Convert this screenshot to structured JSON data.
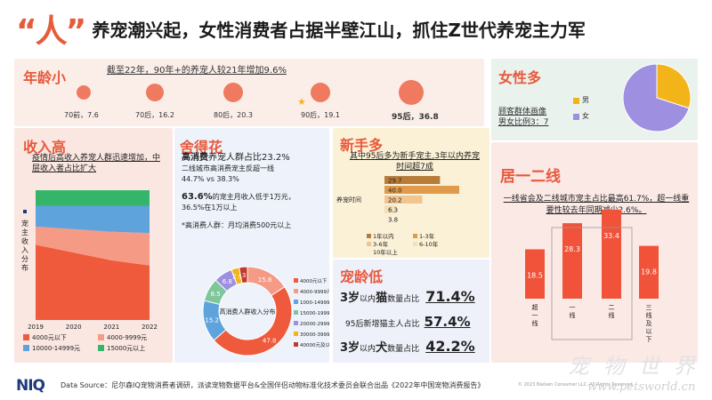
{
  "headline": {
    "quote": "“人”",
    "text": "养宠潮兴起，女性消费者占据半壁江山，抓住Z世代养宠主力军"
  },
  "age": {
    "title": "年龄小",
    "subtitle": "截至22年，90年+的养宠人较21年增加9.6%",
    "groups": [
      {
        "label": "70前，7.6",
        "value": 7.6
      },
      {
        "label": "70后，16.2",
        "value": 16.2
      },
      {
        "label": "80后，20.3",
        "value": 20.3
      },
      {
        "label": "90后，19.1",
        "value": 19.1
      },
      {
        "label": "95后，36.8",
        "value": 36.8
      }
    ]
  },
  "female": {
    "title": "女性多",
    "note_line1": "顾客群体画像",
    "note_line2": "男女比例3：7",
    "legend": [
      {
        "label": "男",
        "color": "#f2b418"
      },
      {
        "label": "女",
        "color": "#9e8fe0"
      }
    ]
  },
  "income": {
    "title": "收入高",
    "note": "疫情后高收入养宠人群迅速增加，中层收入者占比扩大",
    "ylabel": "宠主收入分布",
    "legend": [
      {
        "label": "4000元以下",
        "color": "#ef5a3c"
      },
      {
        "label": "4000-9999元",
        "color": "#f59a85"
      },
      {
        "label": "10000-14999元",
        "color": "#5fa3dc"
      },
      {
        "label": "15000元以上",
        "color": "#35b56a"
      }
    ]
  },
  "spend": {
    "title": "舍得花",
    "line1_bold": "高消费",
    "line1_rest": "养宠人群占比23.2%",
    "line2": "二线城市高消费宠主反超一线",
    "line3": "44.7% vs 38.3%",
    "line4_bold": "63.6%",
    "line4_rest": "的宠主月收入低于1万元，",
    "line5": "36.5%在1万以上",
    "line6": "*高消费人群：月均消费500元以上",
    "donut_center": "高消费人群收入分布",
    "legend": [
      {
        "label": "4000元以下",
        "color": "#ef5a3c"
      },
      {
        "label": "4000-9999元",
        "color": "#f59a85"
      },
      {
        "label": "1000-14999元",
        "color": "#5fa3dc"
      },
      {
        "label": "15000-19999元",
        "color": "#7fc79a"
      },
      {
        "label": "20000-29999元",
        "color": "#9e8fe0"
      },
      {
        "label": "30000-39999元",
        "color": "#f2b418"
      },
      {
        "label": "40000元及以上",
        "color": "#c0392b"
      }
    ]
  },
  "novice": {
    "title": "新手多",
    "note": "其中95后多为新手宠主,3年以内养宠时间超7成",
    "axis_label": "养宠时间",
    "legend": [
      {
        "label": "1年以内",
        "color": "#b87c3a"
      },
      {
        "label": "1-3年",
        "color": "#e09a4c"
      },
      {
        "label": "3-6年",
        "color": "#f0c590"
      },
      {
        "label": "6-10年",
        "color": "#f5dfb9"
      },
      {
        "label": "10年以上",
        "color": "#fbeed7"
      }
    ]
  },
  "petage": {
    "title": "宠龄低",
    "row1_pre": "3岁",
    "row1_mid": "以内",
    "row1_key": "猫",
    "row1_post": "数量占比",
    "row1_value": "71.4%",
    "row2_pre": "95后新增猫主人占比",
    "row2_value": "57.4%",
    "row3_pre": "3岁",
    "row3_mid": "以内",
    "row3_key": "犬",
    "row3_post": "数量占比",
    "row3_value": "42.2%"
  },
  "city": {
    "title": "居一二线",
    "note": "一线省会及二线城市宠主占比最高61.7%，超一线重要性较去年同期减少2.6%。"
  },
  "footer": {
    "brand": "NIQ",
    "source": "Data Source：尼尔森IQ宠物消费者调研，派读宠物数据平台&全国伴侣动物标准化技术委员会联合出品《2022年中国宠物消费报告》",
    "copyright": "© 2023  Nielsen Consumer LLC. All Rights Reserved.",
    "watermark_cn": "宠 物 世 界",
    "watermark_url": "www.petsworld.cn"
  },
  "chart_data": [
    {
      "type": "bubble",
      "title": "年龄小",
      "categories": [
        "70前",
        "70后",
        "80后",
        "90后",
        "95后"
      ],
      "values": [
        7.6,
        16.2,
        20.3,
        19.1,
        36.8
      ]
    },
    {
      "type": "pie",
      "title": "女性多",
      "categories": [
        "男",
        "女"
      ],
      "values": [
        30,
        70
      ]
    },
    {
      "type": "area",
      "title": "收入高",
      "ylabel": "宠主收入分布",
      "x": [
        "2019",
        "2020",
        "2021",
        "2022"
      ],
      "series": [
        {
          "name": "4000元以下",
          "values": [
            58,
            52,
            46,
            42
          ]
        },
        {
          "name": "4000-9999元",
          "values": [
            14,
            18,
            22,
            25
          ]
        },
        {
          "name": "10000-14999元",
          "values": [
            16,
            18,
            20,
            21
          ]
        },
        {
          "name": "15000元以上",
          "values": [
            12,
            12,
            12,
            12
          ]
        }
      ],
      "ylim": [
        0,
        100
      ]
    },
    {
      "type": "pie",
      "title": "高消费人群收入分布",
      "categories": [
        "4000元以下",
        "4000-9999元",
        "1000-14999元",
        "15000-19999元",
        "20000-29999元",
        "30000-39999元",
        "40000元及以上"
      ],
      "values": [
        47.8,
        15.8,
        15.2,
        8.5,
        6.8,
        2.9,
        3.0
      ],
      "labels": [
        "47.8",
        "15.8",
        "15.2",
        "8.5",
        "6.8",
        "2.9",
        "3"
      ]
    },
    {
      "type": "bar",
      "title": "养宠时间",
      "orientation": "horizontal",
      "categories": [
        "1年以内",
        "1-3年",
        "3-6年",
        "6-10年",
        "10年以上"
      ],
      "values": [
        29.7,
        40.0,
        20.2,
        6.3,
        3.8
      ],
      "labels": [
        "29.7",
        "40.0",
        "20.2",
        "6.3",
        "3.8"
      ]
    },
    {
      "type": "bar",
      "title": "居一二线",
      "categories": [
        "超一线",
        "一线",
        "二线",
        "三线及以下"
      ],
      "values": [
        18.5,
        28.3,
        33.4,
        19.8
      ],
      "labels": [
        "18.5",
        "28.3",
        "33.4",
        "19.8"
      ]
    }
  ]
}
